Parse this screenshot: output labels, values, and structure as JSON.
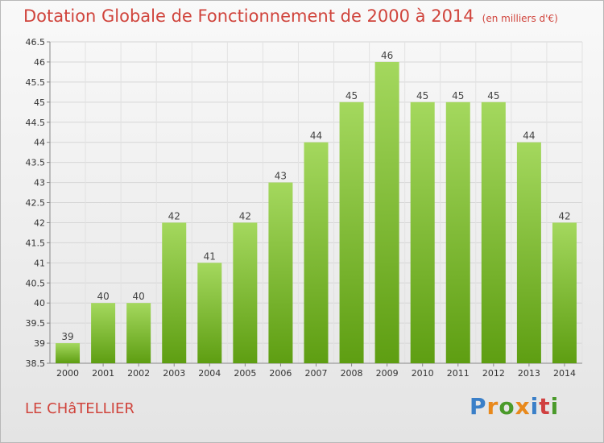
{
  "title": "Dotation Globale de Fonctionnement de 2000 à 2014",
  "subtitle": "(en milliers d'€)",
  "commune": "LE CHâTELLIER",
  "logo": "Proxiti",
  "colors": {
    "title": "#d0443c",
    "bar_light": "#a4d85e",
    "bar_dark": "#5e9e12",
    "logo": [
      "#3a7fc8",
      "#e8891c",
      "#4a9a2a",
      "#e8891c",
      "#3a7fc8",
      "#d04040",
      "#4a9a2a"
    ]
  },
  "chart_data": {
    "type": "bar",
    "categories": [
      "2000",
      "2001",
      "2002",
      "2003",
      "2004",
      "2005",
      "2006",
      "2007",
      "2008",
      "2009",
      "2010",
      "2011",
      "2012",
      "2013",
      "2014"
    ],
    "values": [
      39,
      40,
      40,
      42,
      41,
      42,
      43,
      44,
      45,
      46,
      45,
      45,
      45,
      44,
      42
    ],
    "ylim": [
      38.5,
      46.5
    ],
    "yticks": [
      38.5,
      39,
      39.5,
      40,
      40.5,
      41,
      41.5,
      42,
      42.5,
      43,
      43.5,
      44,
      44.5,
      45,
      45.5,
      46,
      46.5
    ],
    "grid": true
  }
}
